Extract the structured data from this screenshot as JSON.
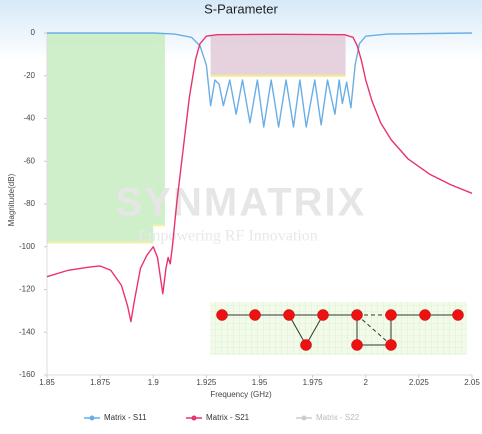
{
  "chart_data": {
    "type": "line",
    "title": "S-Parameter",
    "xlabel": "Frequency (GHz)",
    "ylabel": "Magnitude(dB)",
    "xlim": [
      1.85,
      2.05
    ],
    "xticks": [
      1.85,
      1.875,
      1.9,
      1.925,
      1.95,
      1.975,
      2,
      2.025,
      2.05
    ],
    "ylim": [
      -160,
      0
    ],
    "yticks": [
      0,
      -20,
      -40,
      -60,
      -80,
      -100,
      -120,
      -140,
      -160
    ],
    "watermark": {
      "title": "SYNMATRIX",
      "subtitle": "Empowering RF Innovation"
    },
    "regions": [
      {
        "x": [
          1.85,
          1.9
        ],
        "y": [
          0,
          -98
        ],
        "color": "#c5ecc0",
        "edge_color": "#f3f0a8"
      },
      {
        "x": [
          1.9,
          1.9055
        ],
        "y": [
          0,
          -90
        ],
        "color": "#c5ecc0",
        "edge_color": "#f3f0a8"
      },
      {
        "x": [
          1.927,
          1.9905
        ],
        "y": [
          -1,
          -20
        ],
        "color": "#e2cad8",
        "edge_color": "#f3ec8a"
      }
    ],
    "series": [
      {
        "name": "Matrix - S11",
        "color": "#6aaee6",
        "x": [
          1.85,
          1.9,
          1.91,
          1.918,
          1.922,
          1.925,
          1.927,
          1.929,
          1.931,
          1.933,
          1.936,
          1.939,
          1.942,
          1.9455,
          1.949,
          1.952,
          1.9555,
          1.959,
          1.9625,
          1.966,
          1.969,
          1.972,
          1.976,
          1.979,
          1.982,
          1.9855,
          1.9875,
          1.989,
          1.991,
          1.993,
          1.995,
          1.997,
          2.0,
          2.01,
          2.05
        ],
        "values": [
          0,
          0,
          -0.5,
          -2,
          -6,
          -15,
          -34,
          -22,
          -24,
          -34,
          -22,
          -38,
          -22,
          -42,
          -22,
          -44,
          -22,
          -44,
          -22,
          -44,
          -22,
          -44,
          -22,
          -43,
          -22,
          -38,
          -22,
          -33,
          -23,
          -35,
          -15,
          -5,
          -1.5,
          -0.5,
          0
        ]
      },
      {
        "name": "Matrix - S21",
        "color": "#e8336e",
        "x": [
          1.85,
          1.86,
          1.87,
          1.875,
          1.88,
          1.885,
          1.888,
          1.8895,
          1.891,
          1.894,
          1.897,
          1.9,
          1.902,
          1.9045,
          1.906,
          1.907,
          1.908,
          1.909,
          1.911,
          1.914,
          1.917,
          1.92,
          1.922,
          1.925,
          1.93,
          1.96,
          1.99,
          1.994,
          1.996,
          1.998,
          2.0,
          2.003,
          2.007,
          2.012,
          2.02,
          2.03,
          2.04,
          2.05
        ],
        "values": [
          -114,
          -111,
          -109.5,
          -109,
          -111,
          -118,
          -128,
          -135,
          -126,
          -110,
          -104,
          -100,
          -105,
          -122,
          -110,
          -105,
          -108,
          -100,
          -80,
          -55,
          -30,
          -12,
          -5,
          -1.5,
          -0.8,
          -0.6,
          -0.8,
          -2,
          -6,
          -13,
          -22,
          -32,
          -42,
          -50,
          -59,
          -66,
          -71,
          -75
        ]
      },
      {
        "name": "Matrix - S22",
        "color": "#cccccc",
        "hidden": true
      }
    ]
  }
}
